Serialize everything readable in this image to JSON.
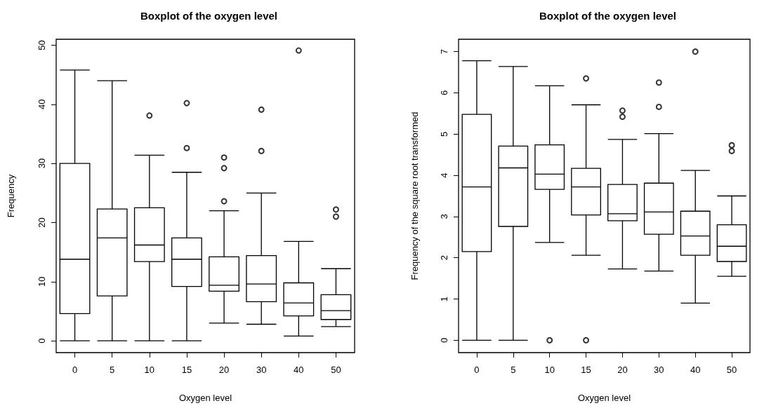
{
  "chart_data": [
    {
      "type": "box",
      "title": "Boxplot of the oxygen level",
      "xlabel": "Oxygen level",
      "ylabel": "Frequency",
      "categories": [
        "0",
        "5",
        "10",
        "15",
        "20",
        "30",
        "40",
        "50"
      ],
      "boxes": [
        {
          "low": 0,
          "q1": 4.6,
          "median": 13.8,
          "q3": 30.0,
          "high": 45.8
        },
        {
          "low": 0,
          "q1": 7.6,
          "median": 17.4,
          "q3": 22.3,
          "high": 44.0
        },
        {
          "low": 0,
          "q1": 13.4,
          "median": 16.2,
          "q3": 22.5,
          "high": 31.4,
          "outliers": [
            38.1
          ]
        },
        {
          "low": 0,
          "q1": 9.2,
          "median": 13.8,
          "q3": 17.4,
          "high": 28.5,
          "outliers": [
            32.6,
            40.2
          ]
        },
        {
          "low": 3.0,
          "q1": 8.4,
          "median": 9.4,
          "q3": 14.2,
          "high": 22.0,
          "outliers": [
            23.6,
            29.2,
            31.0
          ]
        },
        {
          "low": 2.8,
          "q1": 6.6,
          "median": 9.6,
          "q3": 14.4,
          "high": 25.0,
          "outliers": [
            32.1,
            39.1
          ]
        },
        {
          "low": 0.8,
          "q1": 4.2,
          "median": 6.4,
          "q3": 9.8,
          "high": 16.8,
          "outliers": [
            49.1
          ]
        },
        {
          "low": 2.4,
          "q1": 3.6,
          "median": 5.1,
          "q3": 7.8,
          "high": 12.2,
          "outliers": [
            21.0,
            22.2
          ]
        }
      ],
      "ylim": [
        -2,
        51
      ],
      "yticks": [
        0,
        10,
        20,
        30,
        40,
        50
      ]
    },
    {
      "type": "box",
      "title": "Boxplot of the oxygen level",
      "xlabel": "Oxygen level",
      "ylabel": "Frequency of the square root transformed",
      "categories": [
        "0",
        "5",
        "10",
        "15",
        "20",
        "30",
        "40",
        "50"
      ],
      "boxes": [
        {
          "low": 0,
          "q1": 2.15,
          "median": 3.72,
          "q3": 5.48,
          "high": 6.78
        },
        {
          "low": 0,
          "q1": 2.76,
          "median": 4.18,
          "q3": 4.71,
          "high": 6.64
        },
        {
          "low": 2.37,
          "q1": 3.66,
          "median": 4.03,
          "q3": 4.74,
          "high": 6.17,
          "outliers": [
            0
          ]
        },
        {
          "low": 2.06,
          "q1": 3.04,
          "median": 3.72,
          "q3": 4.17,
          "high": 5.71,
          "outliers": [
            0,
            6.35
          ]
        },
        {
          "low": 1.73,
          "q1": 2.9,
          "median": 3.07,
          "q3": 3.78,
          "high": 4.87,
          "outliers": [
            5.42,
            5.57
          ]
        },
        {
          "low": 1.68,
          "q1": 2.57,
          "median": 3.11,
          "q3": 3.81,
          "high": 5.01,
          "outliers": [
            5.66,
            6.25
          ]
        },
        {
          "low": 0.9,
          "q1": 2.06,
          "median": 2.53,
          "q3": 3.13,
          "high": 4.12,
          "outliers": [
            7.0
          ]
        },
        {
          "low": 1.55,
          "q1": 1.91,
          "median": 2.28,
          "q3": 2.8,
          "high": 3.5,
          "outliers": [
            4.59,
            4.73
          ]
        }
      ],
      "ylim": [
        -0.3,
        7.3
      ],
      "yticks": [
        0,
        1,
        2,
        3,
        4,
        5,
        6,
        7
      ]
    }
  ]
}
